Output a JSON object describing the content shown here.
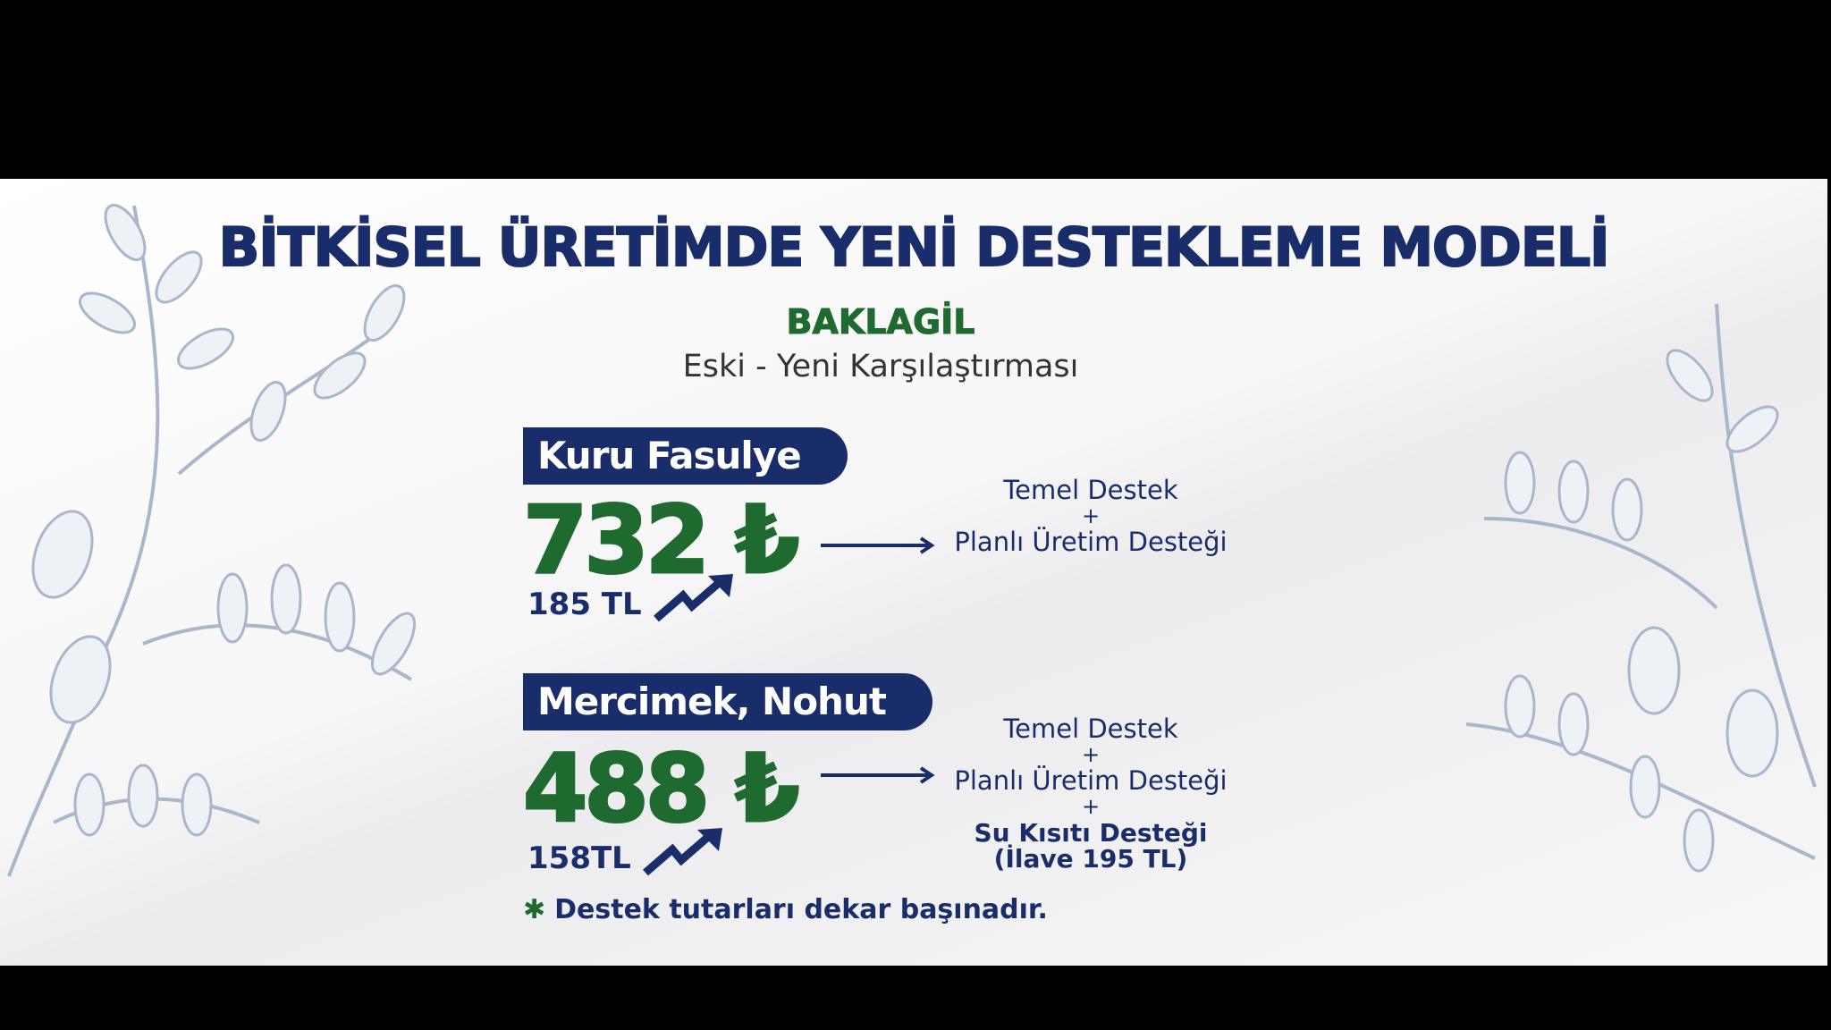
{
  "title": "BİTKİSEL ÜRETİMDE YENİ DESTEKLEME MODELİ",
  "category": "BAKLAGİL",
  "subtitle": "Eski - Yeni Karşılaştırması",
  "items": [
    {
      "label": "Kuru Fasulye",
      "new_amount": "732 ₺",
      "old_amount": "185 TL",
      "components": [
        "Temel Destek",
        "+",
        "Planlı Üretim Desteği"
      ]
    },
    {
      "label": "Mercimek, Nohut",
      "new_amount": "488 ₺",
      "old_amount": "158TL",
      "components": [
        "Temel Destek",
        "+",
        "Planlı Üretim Desteği",
        "+"
      ],
      "extra": [
        "Su Kısıtı Desteği",
        "(İlave 195 TL)"
      ]
    }
  ],
  "footnote": {
    "icon": "asterisk-icon",
    "symbol": "✱",
    "text": "Destek tutarları dekar başınadır."
  },
  "colors": {
    "navy": "#1a2d6b",
    "green": "#1f6a2f",
    "leaf": "#a9b6cc"
  }
}
